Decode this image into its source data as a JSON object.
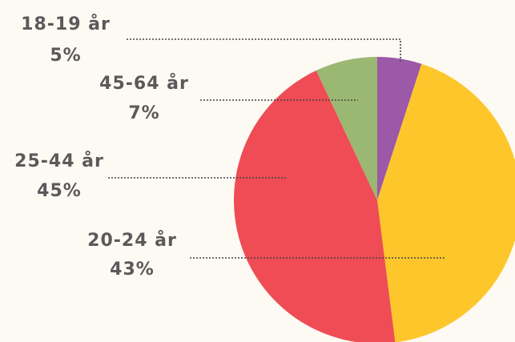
{
  "chart_data": {
    "type": "pie",
    "categories": [
      "18-19 år",
      "20-24 år",
      "25-44 år",
      "45-64 år"
    ],
    "values": [
      5,
      43,
      45,
      7
    ],
    "value_labels": [
      "5%",
      "43%",
      "45%",
      "7%"
    ],
    "colors": [
      "#9b59a8",
      "#fdc72b",
      "#ef4c55",
      "#9bb872"
    ]
  }
}
